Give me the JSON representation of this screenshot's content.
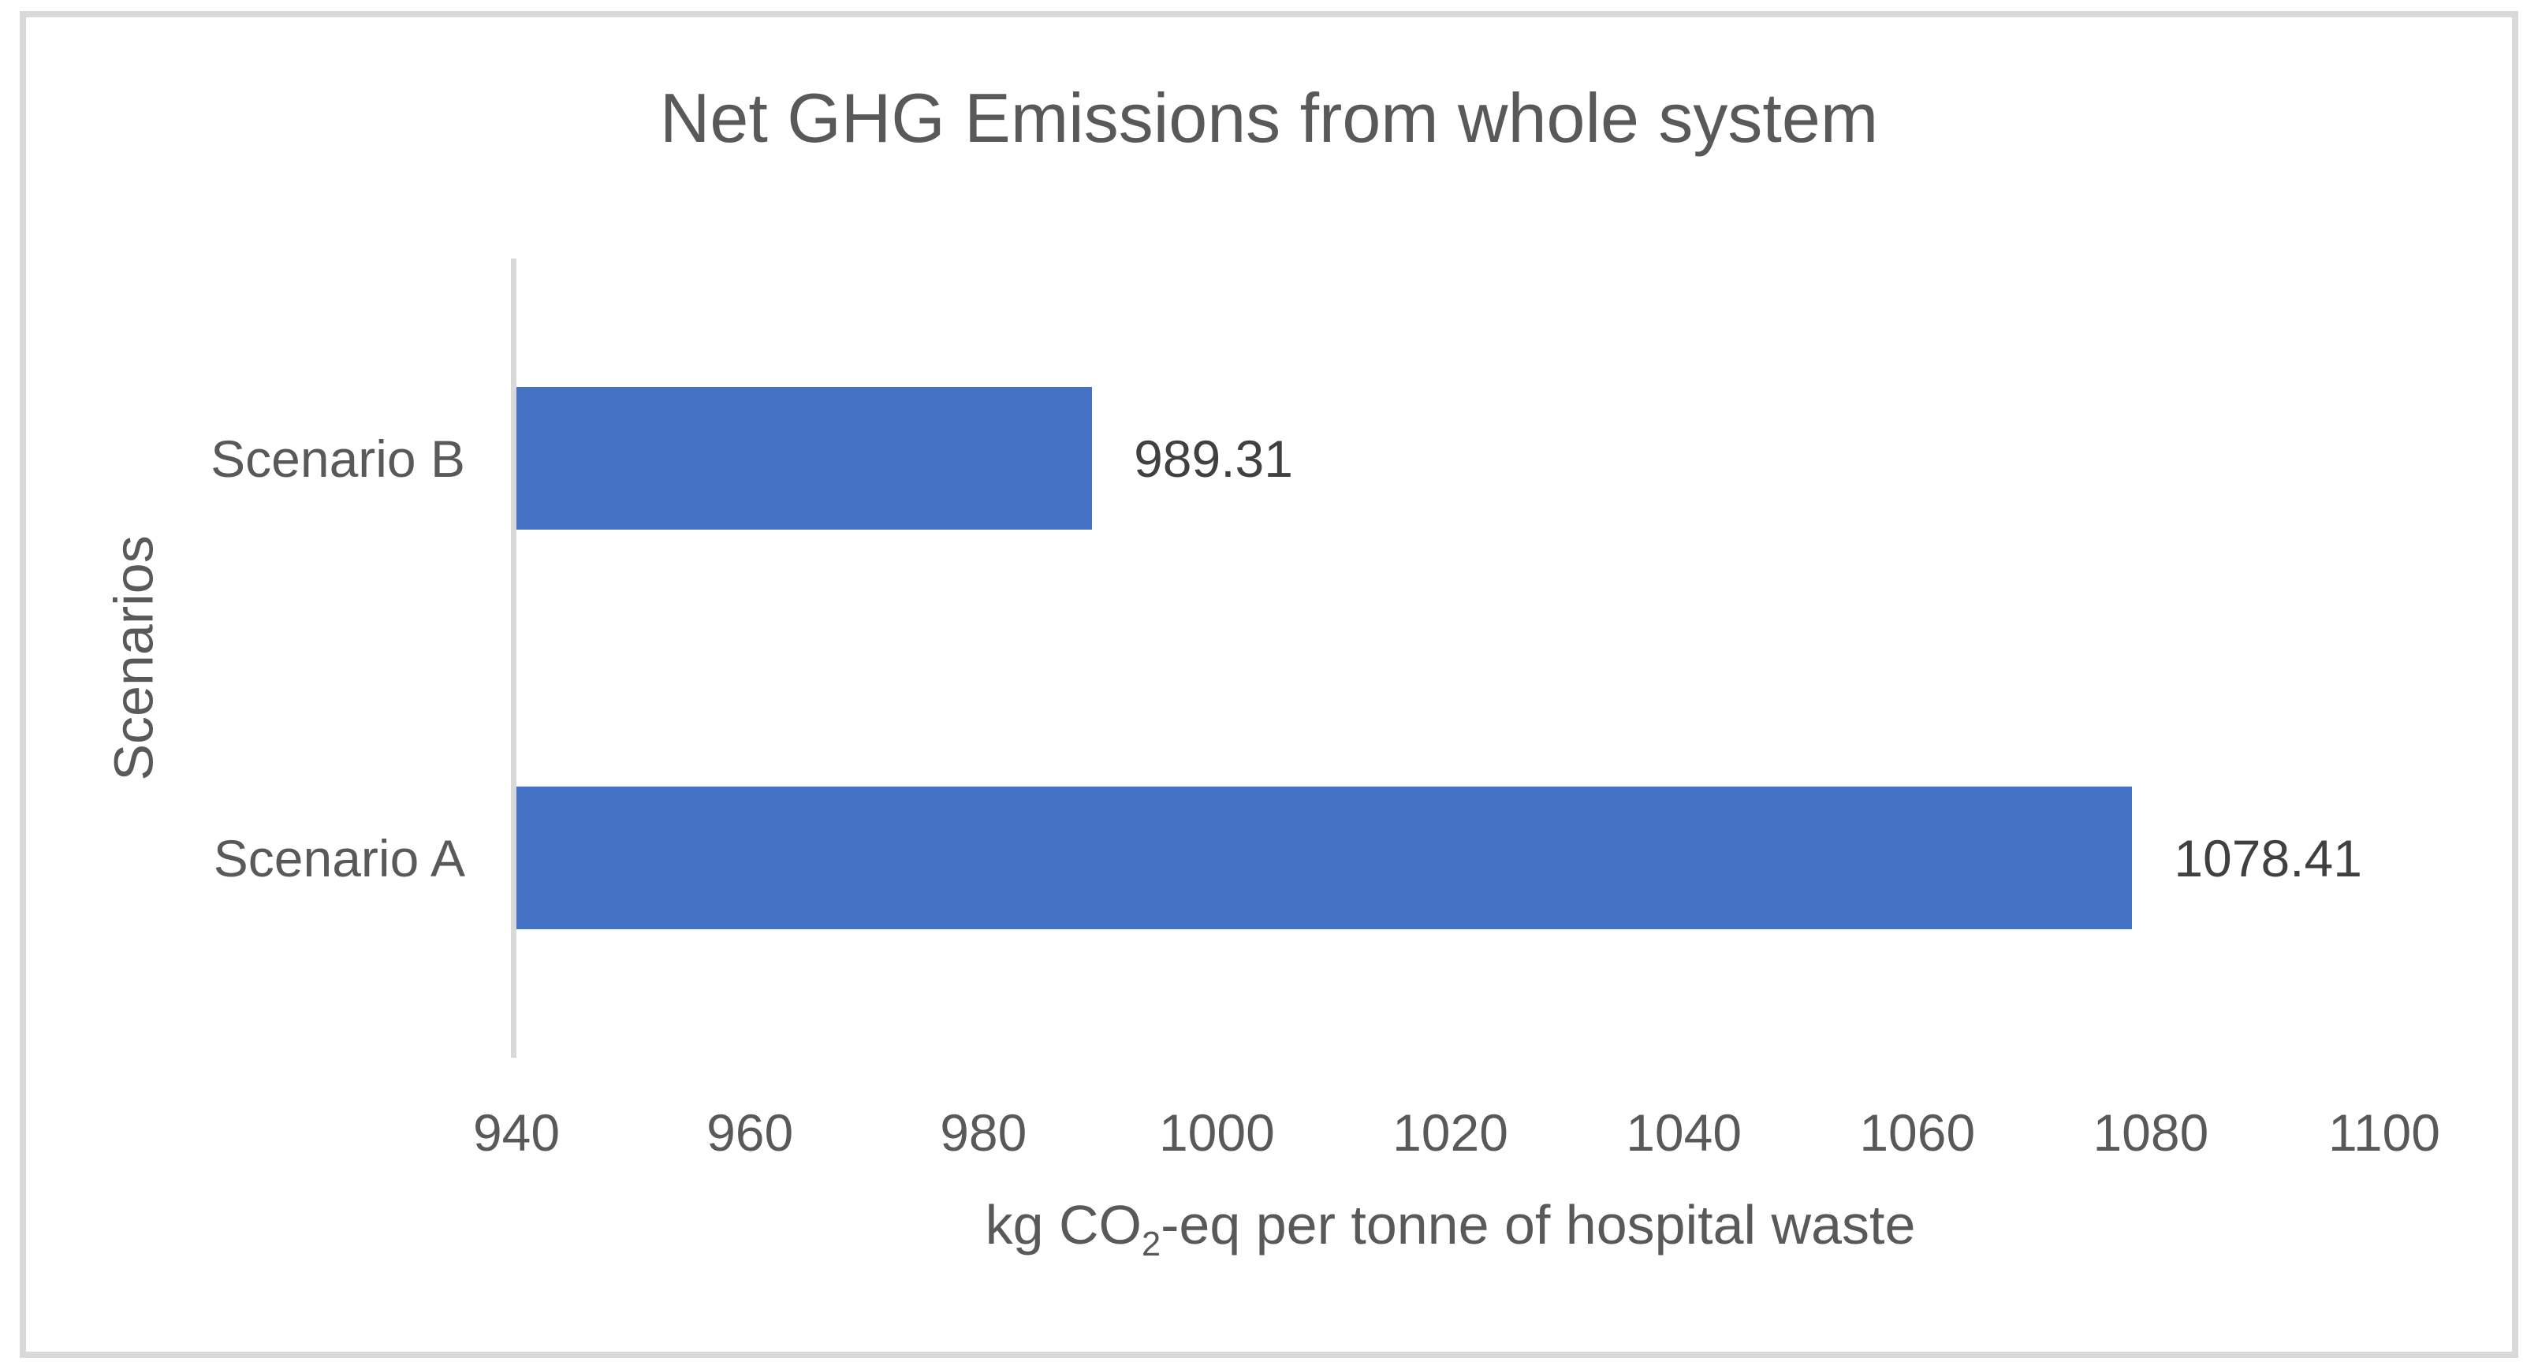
{
  "window": {
    "background": "#FFFFFF"
  },
  "chart_data": {
    "type": "bar",
    "orientation": "horizontal",
    "title": "Net GHG Emissions from whole system",
    "categories": [
      "Scenario B",
      "Scenario A"
    ],
    "values": [
      989.31,
      1078.41
    ],
    "value_labels": [
      "989.31",
      "1078.41"
    ],
    "xlabel": "kg CO2-eq per tonne of hospital waste",
    "xlabel_parts": {
      "prefix": "kg CO",
      "subscript": "2",
      "suffix": "-eq per tonne of hospital waste"
    },
    "ylabel": "Scenarios",
    "xlim": [
      940,
      1100
    ],
    "xticks": [
      "940",
      "960",
      "980",
      "1000",
      "1020",
      "1040",
      "1060",
      "1080",
      "1100"
    ],
    "grid": false,
    "legend": false,
    "colors": {
      "bar": "#4472C4",
      "title_text": "#595959",
      "axis_text": "#595959",
      "data_label_text": "#404040",
      "axis_line": "#D9D9D9",
      "frame_border": "#D9D9D9",
      "background": "#FFFFFF"
    }
  }
}
